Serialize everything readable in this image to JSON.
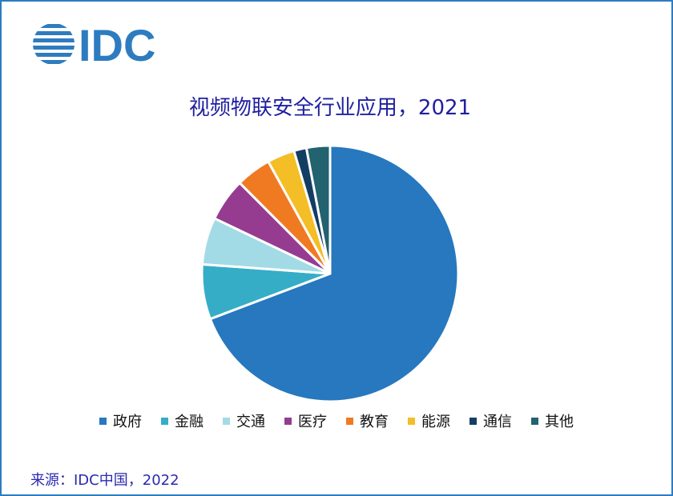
{
  "logo": {
    "text": "IDC",
    "color": "#2e7cc0"
  },
  "chart_data": {
    "type": "pie",
    "title": "视频物联安全行业应用，2021",
    "start": "12 o'clock, clockwise",
    "legend_position": "bottom",
    "slices": [
      {
        "label": "政府",
        "value": 70,
        "color": "#2778be"
      },
      {
        "label": "金融",
        "value": 7,
        "color": "#35adc7"
      },
      {
        "label": "交通",
        "value": 6,
        "color": "#a2dbe6"
      },
      {
        "label": "医疗",
        "value": 5.5,
        "color": "#953c91"
      },
      {
        "label": "教育",
        "value": 4.5,
        "color": "#f07a22"
      },
      {
        "label": "能源",
        "value": 3.5,
        "color": "#f3be26"
      },
      {
        "label": "通信",
        "value": 1.6,
        "color": "#143d64"
      },
      {
        "label": "其他",
        "value": 3,
        "color": "#23626f"
      }
    ]
  },
  "source": "来源：IDC中国，2022"
}
